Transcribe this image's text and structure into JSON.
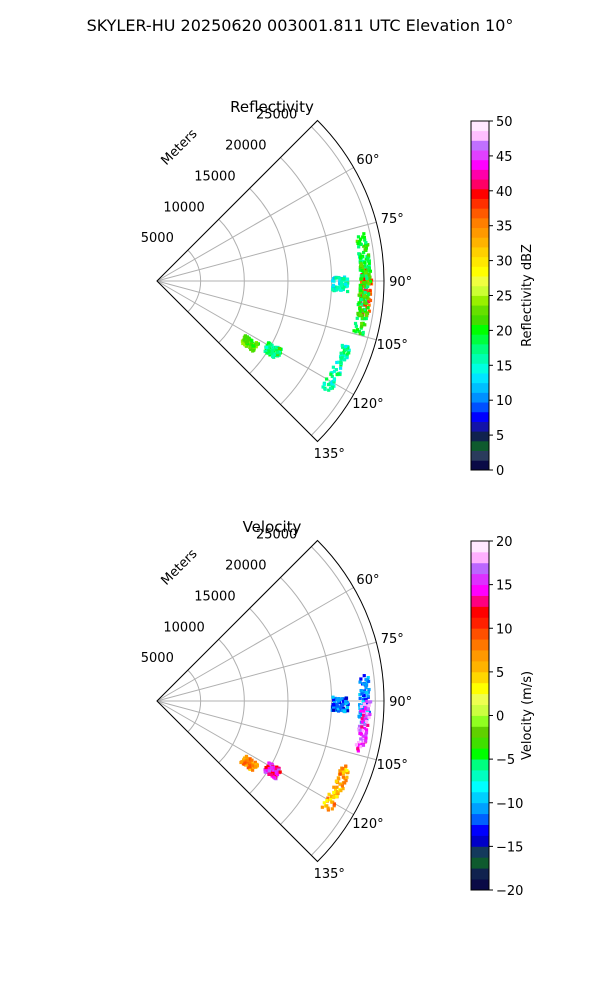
{
  "suptitle": "SKYLER-HU  20250620  003001.811 UTC Elevation 10°",
  "chart_data": [
    {
      "type": "polar-sector",
      "title": "Reflectivity",
      "range_label": "Meters",
      "range_ticks": [
        5000,
        10000,
        15000,
        20000,
        25000
      ],
      "range_max": 26000,
      "azimuth_range": [
        45,
        135
      ],
      "azimuth_ticks": [
        60,
        75,
        90,
        105,
        120,
        135
      ],
      "grid": true,
      "colorbar": {
        "label": "Reflectivity dBZ",
        "range": [
          0,
          50
        ],
        "ticks": [
          0,
          5,
          10,
          15,
          20,
          25,
          30,
          35,
          40,
          45,
          50
        ],
        "colors": [
          "#0a0a46",
          "#2a3b5c",
          "#0e5a2e",
          "#10224e",
          "#1313a8",
          "#0000ff",
          "#0050ff",
          "#0090ff",
          "#00bfff",
          "#00e5ff",
          "#00ffe0",
          "#00ffb0",
          "#00ff7f",
          "#00ff40",
          "#00ff00",
          "#44dd00",
          "#66e000",
          "#99f000",
          "#ccff33",
          "#f0ff40",
          "#ffff00",
          "#ffe800",
          "#ffd000",
          "#ffb300",
          "#ff9900",
          "#ff7f00",
          "#ff5a00",
          "#ff3000",
          "#ff0000",
          "#ff0066",
          "#ff00aa",
          "#ff00ff",
          "#e040ff",
          "#c070ff",
          "#ffc0ff",
          "#ffe8ff"
        ]
      },
      "echoes": [
        {
          "az": 90,
          "range": 23800,
          "value": 18
        },
        {
          "az": 93,
          "range": 24000,
          "value": 38
        },
        {
          "az": 98,
          "range": 23800,
          "value": 20
        },
        {
          "az": 84,
          "range": 23900,
          "value": 20
        },
        {
          "az": 91,
          "range": 21000,
          "value": 15
        },
        {
          "az": 124,
          "range": 12800,
          "value": 22
        },
        {
          "az": 121,
          "range": 15500,
          "value": 18
        },
        {
          "az": 116,
          "range": 23000,
          "value": 16
        }
      ]
    },
    {
      "type": "polar-sector",
      "title": "Velocity",
      "range_label": "Meters",
      "range_ticks": [
        5000,
        10000,
        15000,
        20000,
        25000
      ],
      "range_max": 26000,
      "azimuth_range": [
        45,
        135
      ],
      "azimuth_ticks": [
        60,
        75,
        90,
        105,
        120,
        135
      ],
      "grid": true,
      "colorbar": {
        "label": "Velocity (m/s)",
        "range": [
          -20,
          20
        ],
        "ticks": [
          -20,
          -15,
          -10,
          -5,
          0,
          5,
          10,
          15,
          20
        ],
        "colors": [
          "#0a0a46",
          "#10224e",
          "#0e5a2e",
          "#143a5c",
          "#0000c8",
          "#0000ff",
          "#0060ff",
          "#00a0ff",
          "#00d0ff",
          "#00ffff",
          "#00ffc0",
          "#00ff80",
          "#00ff00",
          "#40e000",
          "#60d000",
          "#90ff20",
          "#ccff40",
          "#eeff50",
          "#ffff00",
          "#ffd700",
          "#ffb300",
          "#ff9900",
          "#ff7700",
          "#ff5000",
          "#ff2000",
          "#ff0000",
          "#ff0080",
          "#ff00ff",
          "#dd30ff",
          "#bb66ff",
          "#ffb0ff",
          "#ffe8ff"
        ]
      },
      "echoes": [
        {
          "az": 90,
          "range": 23800,
          "value": -11
        },
        {
          "az": 97,
          "range": 23900,
          "value": 16
        },
        {
          "az": 91,
          "range": 21000,
          "value": -12
        },
        {
          "az": 124,
          "range": 12800,
          "value": 7
        },
        {
          "az": 121,
          "range": 15500,
          "value": 14
        },
        {
          "az": 116,
          "range": 23000,
          "value": 6
        }
      ]
    }
  ]
}
